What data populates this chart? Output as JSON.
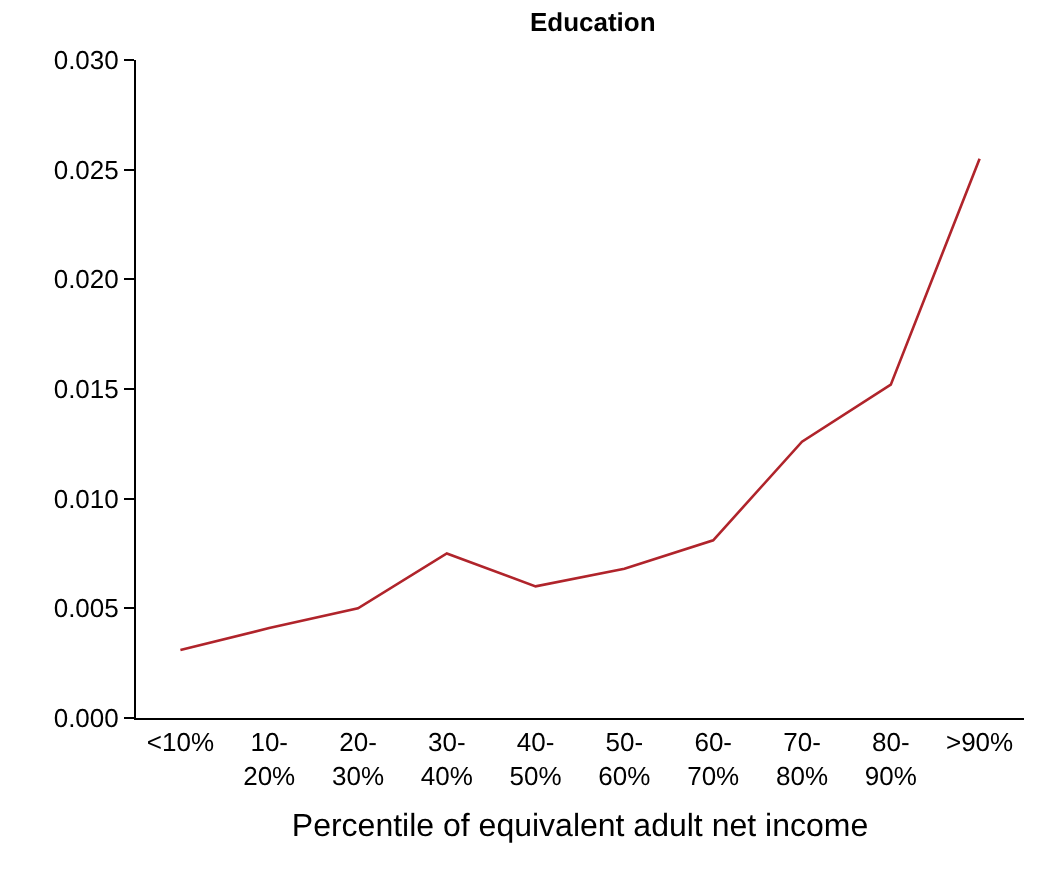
{
  "chart_data": {
    "type": "line",
    "title": "Education",
    "xlabel": "Percentile of equivalent adult net income",
    "categories": [
      "<10%",
      "10-20%",
      "20-30%",
      "30-40%",
      "40-50%",
      "50-60%",
      "60-70%",
      "70-80%",
      "80-90%",
      ">90%"
    ],
    "series": [
      {
        "color": "#b0242b",
        "values": [
          0.0031,
          0.0041,
          0.005,
          0.0075,
          0.006,
          0.0068,
          0.0081,
          0.0126,
          0.0152,
          0.0255
        ]
      }
    ],
    "ylim": [
      0,
      0.03
    ],
    "yticks": [
      {
        "value": 0,
        "label": "0.000"
      },
      {
        "value": 0.005,
        "label": "0.005"
      },
      {
        "value": 0.01,
        "label": "0.010"
      },
      {
        "value": 0.015,
        "label": "0.015"
      },
      {
        "value": 0.02,
        "label": "0.020"
      },
      {
        "value": 0.025,
        "label": "0.025"
      },
      {
        "value": 0.03,
        "label": "0.030"
      }
    ],
    "marker": "none",
    "line_style": "solid"
  }
}
